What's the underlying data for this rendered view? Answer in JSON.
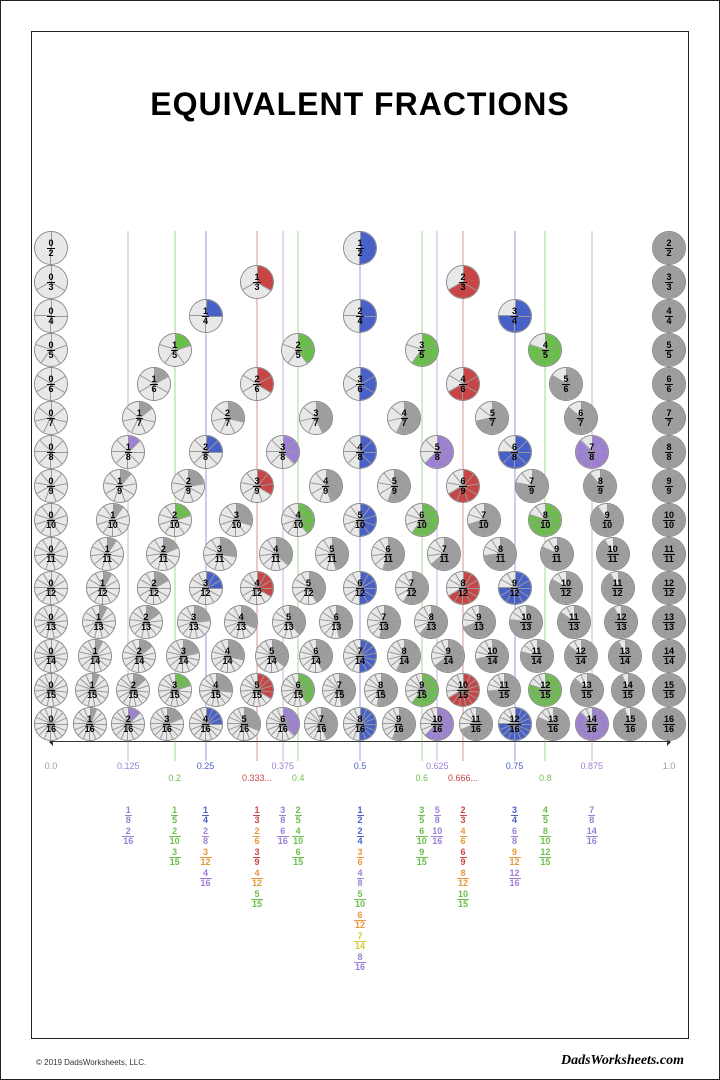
{
  "title": "EQUIVALENT FRACTIONS",
  "copyright": "© 2019 DadsWorksheets, LLC.",
  "brand": "DadsWorksheets.com",
  "colors": {
    "grey": "#9e9e9e",
    "purple": "#9d7fd6",
    "green": "#6abf4b",
    "blue": "#4861c8",
    "yellow": "#d4c937",
    "orange": "#e8963a",
    "red": "#c84545",
    "bg": "#ffffff"
  },
  "chart": {
    "pie_diameter": 34,
    "row_spacing": 34,
    "denominators": [
      2,
      3,
      4,
      5,
      6,
      7,
      8,
      9,
      10,
      11,
      12,
      13,
      14,
      15,
      16
    ],
    "color_for_denominator": {
      "2": "blue",
      "3": "red",
      "4": "blue",
      "5": "green",
      "6": "orange",
      "7": "yellow",
      "8": "purple",
      "9": "red",
      "10": "green",
      "11": "grey",
      "12": "orange",
      "13": "grey",
      "14": "yellow",
      "15": "green",
      "16": "purple"
    },
    "decimal_ticks": [
      {
        "x": 0.0,
        "label": "0.0",
        "color": "grey"
      },
      {
        "x": 0.125,
        "label": "0.125",
        "color": "purple"
      },
      {
        "x": 0.2,
        "label": "0.2",
        "color": "green",
        "offset": 12
      },
      {
        "x": 0.25,
        "label": "0.25",
        "color": "blue"
      },
      {
        "x": 0.3333,
        "label": "0.333...",
        "color": "red",
        "offset": 12
      },
      {
        "x": 0.375,
        "label": "0.375",
        "color": "purple"
      },
      {
        "x": 0.4,
        "label": "0.4",
        "color": "green",
        "offset": 12
      },
      {
        "x": 0.5,
        "label": "0.5",
        "color": "blue"
      },
      {
        "x": 0.6,
        "label": "0.6",
        "color": "green",
        "offset": 12
      },
      {
        "x": 0.625,
        "label": "0.625",
        "color": "purple"
      },
      {
        "x": 0.6667,
        "label": "0.666...",
        "color": "red",
        "offset": 12
      },
      {
        "x": 0.75,
        "label": "0.75",
        "color": "blue"
      },
      {
        "x": 0.8,
        "label": "0.8",
        "color": "green",
        "offset": 12
      },
      {
        "x": 0.875,
        "label": "0.875",
        "color": "purple"
      },
      {
        "x": 1.0,
        "label": "1.0",
        "color": "grey"
      }
    ],
    "guide_lines": [
      {
        "x": 0.125,
        "color": "purple"
      },
      {
        "x": 0.2,
        "color": "green"
      },
      {
        "x": 0.25,
        "color": "blue"
      },
      {
        "x": 0.3333,
        "color": "red"
      },
      {
        "x": 0.375,
        "color": "purple"
      },
      {
        "x": 0.4,
        "color": "green"
      },
      {
        "x": 0.5,
        "color": "blue"
      },
      {
        "x": 0.6,
        "color": "green"
      },
      {
        "x": 0.625,
        "color": "purple"
      },
      {
        "x": 0.6667,
        "color": "red"
      },
      {
        "x": 0.75,
        "color": "blue"
      },
      {
        "x": 0.8,
        "color": "green"
      },
      {
        "x": 0.875,
        "color": "purple"
      }
    ]
  },
  "equiv_columns": [
    {
      "x": 0.125,
      "fracs": [
        {
          "n": 1,
          "d": 8,
          "c": "purple"
        },
        {
          "n": 2,
          "d": 16,
          "c": "purple"
        }
      ]
    },
    {
      "x": 0.2,
      "fracs": [
        {
          "n": 1,
          "d": 5,
          "c": "green"
        },
        {
          "n": 2,
          "d": 10,
          "c": "green"
        },
        {
          "n": 3,
          "d": 15,
          "c": "green"
        }
      ]
    },
    {
      "x": 0.25,
      "fracs": [
        {
          "n": 1,
          "d": 4,
          "c": "blue"
        },
        {
          "n": 2,
          "d": 8,
          "c": "purple"
        },
        {
          "n": 3,
          "d": 12,
          "c": "orange"
        },
        {
          "n": 4,
          "d": 16,
          "c": "purple"
        }
      ]
    },
    {
      "x": 0.3333,
      "fracs": [
        {
          "n": 1,
          "d": 3,
          "c": "red"
        },
        {
          "n": 2,
          "d": 6,
          "c": "orange"
        },
        {
          "n": 3,
          "d": 9,
          "c": "red"
        },
        {
          "n": 4,
          "d": 12,
          "c": "orange"
        },
        {
          "n": 5,
          "d": 15,
          "c": "green"
        }
      ]
    },
    {
      "x": 0.375,
      "fracs": [
        {
          "n": 3,
          "d": 8,
          "c": "purple"
        },
        {
          "n": 6,
          "d": 16,
          "c": "purple"
        }
      ]
    },
    {
      "x": 0.4,
      "fracs": [
        {
          "n": 2,
          "d": 5,
          "c": "green"
        },
        {
          "n": 4,
          "d": 10,
          "c": "green"
        },
        {
          "n": 6,
          "d": 15,
          "c": "green"
        }
      ]
    },
    {
      "x": 0.5,
      "fracs": [
        {
          "n": 1,
          "d": 2,
          "c": "blue"
        },
        {
          "n": 2,
          "d": 4,
          "c": "blue"
        },
        {
          "n": 3,
          "d": 6,
          "c": "orange"
        },
        {
          "n": 4,
          "d": 8,
          "c": "purple"
        },
        {
          "n": 5,
          "d": 10,
          "c": "green"
        },
        {
          "n": 6,
          "d": 12,
          "c": "orange"
        },
        {
          "n": 7,
          "d": 14,
          "c": "yellow"
        },
        {
          "n": 8,
          "d": 16,
          "c": "purple"
        }
      ]
    },
    {
      "x": 0.6,
      "fracs": [
        {
          "n": 3,
          "d": 5,
          "c": "green"
        },
        {
          "n": 6,
          "d": 10,
          "c": "green"
        },
        {
          "n": 9,
          "d": 15,
          "c": "green"
        }
      ]
    },
    {
      "x": 0.625,
      "fracs": [
        {
          "n": 5,
          "d": 8,
          "c": "purple"
        },
        {
          "n": 10,
          "d": 16,
          "c": "purple"
        }
      ]
    },
    {
      "x": 0.6667,
      "fracs": [
        {
          "n": 2,
          "d": 3,
          "c": "red"
        },
        {
          "n": 4,
          "d": 6,
          "c": "orange"
        },
        {
          "n": 6,
          "d": 9,
          "c": "red"
        },
        {
          "n": 8,
          "d": 12,
          "c": "orange"
        },
        {
          "n": 10,
          "d": 15,
          "c": "green"
        }
      ]
    },
    {
      "x": 0.75,
      "fracs": [
        {
          "n": 3,
          "d": 4,
          "c": "blue"
        },
        {
          "n": 6,
          "d": 8,
          "c": "purple"
        },
        {
          "n": 9,
          "d": 12,
          "c": "orange"
        },
        {
          "n": 12,
          "d": 16,
          "c": "purple"
        }
      ]
    },
    {
      "x": 0.8,
      "fracs": [
        {
          "n": 4,
          "d": 5,
          "c": "green"
        },
        {
          "n": 8,
          "d": 10,
          "c": "green"
        },
        {
          "n": 12,
          "d": 15,
          "c": "green"
        }
      ]
    },
    {
      "x": 0.875,
      "fracs": [
        {
          "n": 7,
          "d": 8,
          "c": "purple"
        },
        {
          "n": 14,
          "d": 16,
          "c": "purple"
        }
      ]
    }
  ]
}
